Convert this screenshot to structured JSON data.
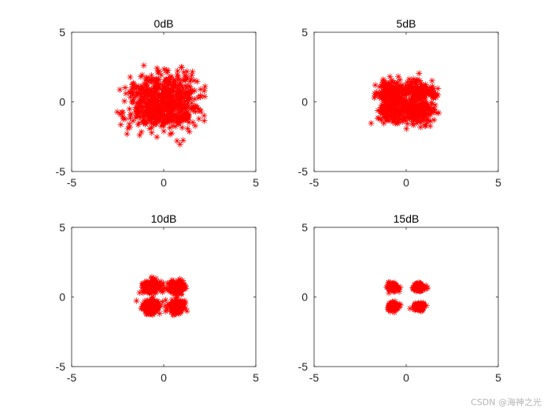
{
  "chart_data": [
    {
      "type": "scatter",
      "title": "0dB",
      "xlim": [
        -5,
        5
      ],
      "ylim": [
        -5,
        5
      ],
      "xticks": [
        -5,
        0,
        5
      ],
      "yticks": [
        -5,
        0,
        5
      ],
      "grid": false,
      "marker": "asterisk",
      "color": "#ff0000",
      "constellation": {
        "centers": [
          [
            -0.7,
            0.7
          ],
          [
            0.7,
            0.7
          ],
          [
            -0.7,
            -0.7
          ],
          [
            0.7,
            -0.7
          ]
        ],
        "spread": 0.7,
        "points_per_cluster": 180
      }
    },
    {
      "type": "scatter",
      "title": "5dB",
      "xlim": [
        -5,
        5
      ],
      "ylim": [
        -5,
        5
      ],
      "xticks": [
        -5,
        0,
        5
      ],
      "yticks": [
        -5,
        0,
        5
      ],
      "grid": false,
      "marker": "asterisk",
      "color": "#ff0000",
      "constellation": {
        "centers": [
          [
            -0.7,
            0.7
          ],
          [
            0.7,
            0.7
          ],
          [
            -0.7,
            -0.7
          ],
          [
            0.7,
            -0.7
          ]
        ],
        "spread": 0.42,
        "points_per_cluster": 180
      }
    },
    {
      "type": "scatter",
      "title": "10dB",
      "xlim": [
        -5,
        5
      ],
      "ylim": [
        -5,
        5
      ],
      "xticks": [
        -5,
        0,
        5
      ],
      "yticks": [
        -5,
        0,
        5
      ],
      "grid": false,
      "marker": "asterisk",
      "color": "#ff0000",
      "constellation": {
        "centers": [
          [
            -0.7,
            0.7
          ],
          [
            0.7,
            0.7
          ],
          [
            -0.7,
            -0.7
          ],
          [
            0.7,
            -0.7
          ]
        ],
        "spread": 0.24,
        "points_per_cluster": 180
      }
    },
    {
      "type": "scatter",
      "title": "15dB",
      "xlim": [
        -5,
        5
      ],
      "ylim": [
        -5,
        5
      ],
      "xticks": [
        -5,
        0,
        5
      ],
      "yticks": [
        -5,
        0,
        5
      ],
      "grid": false,
      "marker": "asterisk",
      "color": "#ff0000",
      "constellation": {
        "centers": [
          [
            -0.7,
            0.7
          ],
          [
            0.7,
            0.7
          ],
          [
            -0.7,
            -0.7
          ],
          [
            0.7,
            -0.7
          ]
        ],
        "spread": 0.13,
        "points_per_cluster": 180
      }
    }
  ],
  "watermark": "CSDN @海神之光"
}
